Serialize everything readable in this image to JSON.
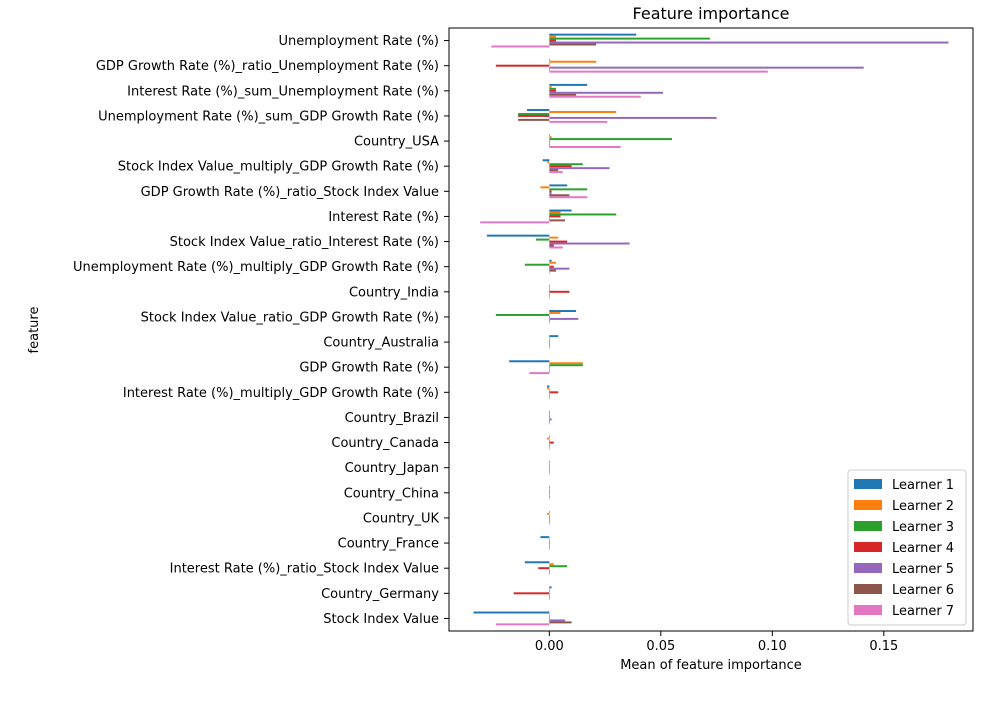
{
  "chart_data": {
    "type": "bar",
    "orientation": "horizontal",
    "title": "Feature importance",
    "xlabel": "Mean of feature importance",
    "ylabel": "feature",
    "xlim": [
      -0.045,
      0.19
    ],
    "xticks": [
      0.0,
      0.05,
      0.1,
      0.15
    ],
    "xtick_labels": [
      "0.00",
      "0.05",
      "0.10",
      "0.15"
    ],
    "grid": false,
    "legend_position": "lower-right",
    "categories": [
      "Unemployment Rate (%)",
      "GDP Growth Rate (%)_ratio_Unemployment Rate (%)",
      "Interest Rate (%)_sum_Unemployment Rate (%)",
      "Unemployment Rate (%)_sum_GDP Growth Rate (%)",
      "Country_USA",
      "Stock Index Value_multiply_GDP Growth Rate (%)",
      "GDP Growth Rate (%)_ratio_Stock Index Value",
      "Interest Rate (%)",
      "Stock Index Value_ratio_Interest Rate (%)",
      "Unemployment Rate (%)_multiply_GDP Growth Rate (%)",
      "Country_India",
      "Stock Index Value_ratio_GDP Growth Rate (%)",
      "Country_Australia",
      "GDP Growth Rate (%)",
      "Interest Rate (%)_multiply_GDP Growth Rate (%)",
      "Country_Brazil",
      "Country_Canada",
      "Country_Japan",
      "Country_China",
      "Country_UK",
      "Country_France",
      "Interest Rate (%)_ratio_Stock Index Value",
      "Country_Germany",
      "Stock Index Value"
    ],
    "series": [
      {
        "name": "Learner 1",
        "color": "#1f77b4",
        "values": [
          0.039,
          0.0,
          0.017,
          -0.01,
          0.0,
          -0.003,
          0.008,
          0.01,
          -0.028,
          0.001,
          0.0,
          0.012,
          0.004,
          -0.018,
          -0.001,
          0.0,
          0.0,
          0.0,
          0.0,
          0.0,
          -0.004,
          -0.011,
          0.001,
          -0.034
        ]
      },
      {
        "name": "Learner 2",
        "color": "#ff7f0e",
        "values": [
          0.003,
          0.021,
          0.001,
          0.03,
          0.001,
          -0.001,
          -0.004,
          0.005,
          0.004,
          0.003,
          0.0,
          0.005,
          0.0,
          0.015,
          -0.001,
          0.0,
          -0.001,
          0.0,
          0.0,
          -0.001,
          0.0,
          0.002,
          0.0,
          0.0
        ]
      },
      {
        "name": "Learner 3",
        "color": "#2ca02c",
        "values": [
          0.072,
          0.0,
          0.003,
          -0.014,
          0.055,
          0.015,
          0.017,
          0.03,
          -0.006,
          -0.011,
          0.0,
          -0.024,
          0.0,
          0.015,
          0.0,
          0.0,
          0.0,
          0.0,
          0.0,
          0.0,
          0.0,
          0.008,
          0.0,
          0.0
        ]
      },
      {
        "name": "Learner 4",
        "color": "#d62728",
        "values": [
          0.003,
          -0.024,
          0.003,
          -0.014,
          0.0,
          0.01,
          0.001,
          0.005,
          0.008,
          0.002,
          0.009,
          0.0,
          0.0,
          0.0,
          0.004,
          0.0,
          0.002,
          0.0,
          0.0,
          0.0,
          0.0,
          -0.005,
          -0.016,
          0.0
        ]
      },
      {
        "name": "Learner 5",
        "color": "#9467bd",
        "values": [
          0.179,
          0.141,
          0.051,
          0.075,
          0.0,
          0.027,
          0.001,
          0.0,
          0.036,
          0.009,
          0.0,
          0.013,
          0.0,
          0.0,
          0.0,
          0.001,
          0.0,
          0.0,
          0.0,
          0.0,
          0.0,
          0.0,
          0.0,
          0.007
        ]
      },
      {
        "name": "Learner 6",
        "color": "#8c564b",
        "values": [
          0.021,
          0.0,
          0.012,
          -0.014,
          0.0,
          0.004,
          0.009,
          0.007,
          0.002,
          0.003,
          0.0,
          0.0,
          0.0,
          0.0,
          0.0,
          0.0,
          0.0,
          0.0,
          0.0,
          0.0,
          0.0,
          0.0,
          0.0,
          0.01
        ]
      },
      {
        "name": "Learner 7",
        "color": "#e377c2",
        "values": [
          -0.026,
          0.098,
          0.041,
          0.026,
          0.032,
          0.006,
          0.017,
          -0.031,
          0.006,
          0.0,
          0.0,
          0.0,
          0.0,
          -0.009,
          0.0,
          0.0,
          0.0,
          0.0,
          0.0,
          0.0,
          0.0,
          0.0,
          0.0,
          -0.024
        ]
      }
    ]
  }
}
